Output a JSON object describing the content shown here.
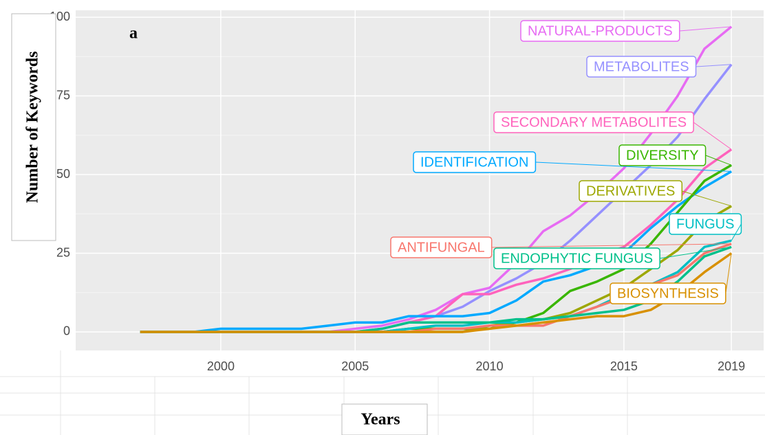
{
  "chart_data": {
    "type": "line",
    "title": "a",
    "xlabel": "Years",
    "ylabel": "Number of Keywords",
    "x": [
      1997,
      1998,
      1999,
      2000,
      2001,
      2002,
      2003,
      2004,
      2005,
      2006,
      2007,
      2008,
      2009,
      2010,
      2011,
      2012,
      2013,
      2014,
      2015,
      2016,
      2017,
      2018,
      2019
    ],
    "xlim": [
      1994.6,
      2020.2
    ],
    "xticks": [
      2000,
      2005,
      2010,
      2015,
      2019
    ],
    "ylim": [
      -5.9,
      102.2
    ],
    "yticks": [
      0,
      25,
      50,
      75,
      100
    ],
    "grid": true,
    "series": [
      {
        "name": "NATURAL-PRODUCTS",
        "color": "#e76bf3",
        "values": [
          0,
          0,
          0,
          0,
          0,
          0,
          0,
          0,
          1,
          2,
          4,
          7,
          12,
          14,
          22,
          32,
          37,
          44,
          52,
          63,
          75,
          90,
          97
        ]
      },
      {
        "name": "METABOLITES",
        "color": "#9590ff",
        "values": [
          0,
          0,
          0,
          0,
          0,
          0,
          0,
          0,
          0,
          1,
          3,
          5,
          8,
          13,
          17,
          22,
          29,
          37,
          45,
          53,
          62,
          74,
          85
        ]
      },
      {
        "name": "SECONDARY METABOLITES",
        "color": "#ff62bc",
        "values": [
          0,
          0,
          0,
          0,
          0,
          0,
          0,
          0,
          0,
          1,
          3,
          5,
          12,
          12,
          15,
          17,
          20,
          24,
          27,
          34,
          42,
          52,
          58
        ]
      },
      {
        "name": "IDENTIFICATION",
        "color": "#00a9ff",
        "values": [
          0,
          0,
          0,
          1,
          1,
          1,
          1,
          2,
          3,
          3,
          5,
          5,
          5,
          6,
          10,
          16,
          18,
          21,
          25,
          33,
          40,
          46,
          51
        ]
      },
      {
        "name": "DIVERSITY",
        "color": "#39b600",
        "values": [
          0,
          0,
          0,
          0,
          0,
          0,
          0,
          0,
          0,
          0,
          1,
          1,
          1,
          1,
          3,
          6,
          13,
          16,
          20,
          28,
          38,
          48,
          53
        ]
      },
      {
        "name": "DERIVATIVES",
        "color": "#9da700",
        "values": [
          0,
          0,
          0,
          0,
          0,
          0,
          0,
          0,
          0,
          0,
          0,
          0,
          0,
          2,
          3,
          4,
          6,
          10,
          14,
          20,
          26,
          35,
          40
        ]
      },
      {
        "name": "FUNGUS",
        "color": "#00bfc4",
        "values": [
          0,
          0,
          0,
          0,
          0,
          0,
          0,
          0,
          0,
          0,
          1,
          2,
          2,
          3,
          3,
          4,
          5,
          8,
          12,
          15,
          19,
          27,
          29
        ]
      },
      {
        "name": "ANTIFUNGAL",
        "color": "#f8766d",
        "values": [
          0,
          0,
          0,
          0,
          0,
          0,
          0,
          0,
          0,
          0,
          0,
          1,
          1,
          2,
          2,
          2,
          5,
          8,
          11,
          15,
          18,
          25,
          28
        ]
      },
      {
        "name": "ENDOPHYTIC FUNGUS",
        "color": "#00c08b",
        "values": [
          0,
          0,
          0,
          0,
          0,
          0,
          0,
          0,
          0,
          1,
          3,
          3,
          3,
          3,
          4,
          4,
          5,
          6,
          7,
          10,
          16,
          24,
          27
        ]
      },
      {
        "name": "BIOSYNTHESIS",
        "color": "#d89000",
        "values": [
          0,
          0,
          0,
          0,
          0,
          0,
          0,
          0,
          0,
          0,
          0,
          0,
          0,
          1,
          2,
          3,
          4,
          5,
          5,
          7,
          12,
          19,
          25
        ]
      }
    ]
  }
}
